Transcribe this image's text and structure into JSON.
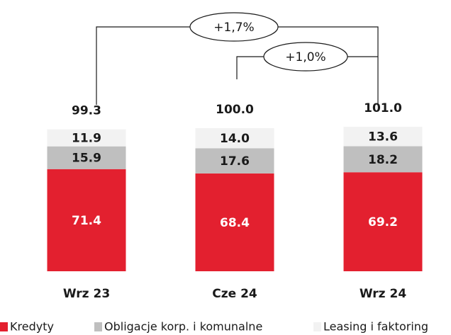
{
  "chart_data": {
    "type": "stacked-bar",
    "categories": [
      "Wrz 23",
      "Cze 24",
      "Wrz 24"
    ],
    "series": [
      {
        "name": "Kredyty",
        "color": "#e3202f",
        "values": [
          71.4,
          68.4,
          69.2
        ]
      },
      {
        "name": "Obligacje korp. i komunalne",
        "color": "#bfbfbf",
        "values": [
          15.9,
          17.6,
          18.2
        ]
      },
      {
        "name": "Leasing i faktoring",
        "color": "#f2f2f2",
        "values": [
          11.9,
          14.0,
          13.6
        ],
        "value_labels": [
          "11.9",
          "14.0",
          "13.6"
        ]
      }
    ],
    "totals": {
      "values": [
        99.3,
        100.0,
        101.0
      ],
      "value_labels": [
        "99.3",
        "100.0",
        "101.0"
      ]
    },
    "annotations": [
      "+1,7%",
      "+1,0%"
    ]
  }
}
